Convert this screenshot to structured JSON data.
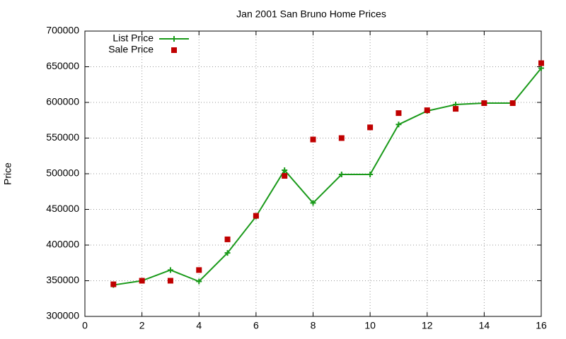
{
  "chart_data": {
    "type": "line",
    "title": "Jan 2001 San Bruno Home Prices",
    "y_label": "Price",
    "x": [
      1,
      2,
      3,
      4,
      5,
      6,
      7,
      8,
      9,
      10,
      11,
      12,
      13,
      14,
      15,
      16
    ],
    "series": [
      {
        "name": "List Price",
        "color": "#1a9a1a",
        "style": "linespoints",
        "values": [
          344000,
          350000,
          365000,
          349000,
          389000,
          440000,
          505000,
          459000,
          499000,
          499000,
          569000,
          588000,
          597000,
          599000,
          599000,
          648000
        ]
      },
      {
        "name": "Sale Price",
        "color": "#c00000",
        "style": "points",
        "values": [
          345000,
          350000,
          350000,
          365000,
          408000,
          441000,
          497000,
          548000,
          550000,
          565000,
          585000,
          589000,
          591000,
          599000,
          599000,
          655000
        ]
      }
    ],
    "xlim": [
      0,
      16
    ],
    "xticks": [
      0,
      2,
      4,
      6,
      8,
      10,
      12,
      14,
      16
    ],
    "ylim": [
      300000,
      700000
    ],
    "yticks": [
      300000,
      350000,
      400000,
      450000,
      500000,
      550000,
      600000,
      650000,
      700000
    ],
    "grid": true,
    "legend": "top-left"
  }
}
